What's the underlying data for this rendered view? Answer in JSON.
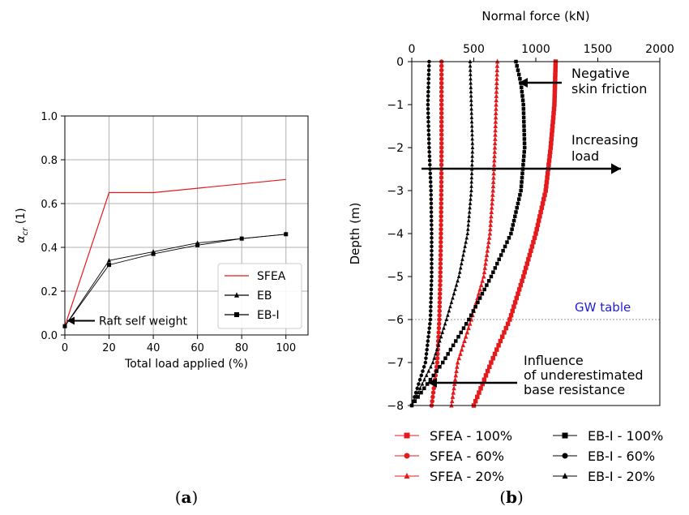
{
  "colors": {
    "red": "#e41a1c",
    "black": "#000000",
    "grid": "#b0b0b0",
    "blue": "#1f1fcf"
  },
  "chart_data": [
    {
      "type": "line",
      "panel_label": "(a)",
      "panel_letter": "a",
      "xlabel": "Total load applied (%)",
      "ylabel": "α",
      "ylabel_sub": "cr",
      "ylabel_unit": "(1)",
      "xlim": [
        0,
        110
      ],
      "ylim": [
        0,
        1.0
      ],
      "x_ticks": [
        "0",
        "20",
        "40",
        "60",
        "80",
        "100"
      ],
      "y_ticks": [
        "0.0",
        "0.2",
        "0.4",
        "0.6",
        "0.8",
        "1.0"
      ],
      "grid": true,
      "legend_position": "lower-right",
      "series": [
        {
          "name": "SFEA",
          "color": "#e41a1c",
          "marker": "none",
          "x": [
            0,
            20,
            40,
            100
          ],
          "y": [
            0.04,
            0.65,
            0.65,
            0.71
          ]
        },
        {
          "name": "EB",
          "color": "#000000",
          "marker": "triangle",
          "x": [
            0,
            20,
            40,
            60,
            80,
            100
          ],
          "y": [
            0.04,
            0.34,
            0.38,
            0.42,
            0.44,
            0.46
          ]
        },
        {
          "name": "EB-I",
          "color": "#000000",
          "marker": "square",
          "x": [
            0,
            20,
            40,
            60,
            80,
            100
          ],
          "y": [
            0.04,
            0.32,
            0.37,
            0.41,
            0.44,
            0.46
          ]
        }
      ],
      "annotations": [
        {
          "text": "Raft self weight",
          "x": 0,
          "y": 0.05
        }
      ]
    },
    {
      "type": "line",
      "panel_label": "(b)",
      "panel_letter": "b",
      "xlabel": "Normal force (kN)",
      "ylabel": "Depth (m)",
      "xlim": [
        0,
        2000
      ],
      "ylim": [
        -8,
        0
      ],
      "x_axis_position": "top",
      "x_ticks": [
        "0",
        "500",
        "1000",
        "1500",
        "2000"
      ],
      "y_ticks": [
        "0",
        "−1",
        "−2",
        "−3",
        "−4",
        "−5",
        "−6",
        "−7",
        "−8"
      ],
      "grid": false,
      "legend_position": "bottom",
      "gw_table": {
        "label": "GW table",
        "depth": -6
      },
      "series": [
        {
          "name": "SFEA - 100%",
          "color": "#e41a1c",
          "marker": "square",
          "depth": [
            0,
            -1,
            -2,
            -3,
            -4,
            -5,
            -6,
            -7,
            -8
          ],
          "force": [
            1160,
            1150,
            1120,
            1080,
            1000,
            900,
            790,
            640,
            500
          ]
        },
        {
          "name": "SFEA - 60%",
          "color": "#e41a1c",
          "marker": "circle",
          "depth": [
            0,
            -1,
            -2,
            -3,
            -4,
            -5,
            -6,
            -7,
            -8
          ],
          "force": [
            240,
            240,
            240,
            238,
            235,
            230,
            222,
            205,
            160
          ]
        },
        {
          "name": "SFEA - 20%",
          "color": "#e41a1c",
          "marker": "triangle",
          "depth": [
            0,
            -1,
            -2,
            -3,
            -4,
            -5,
            -6,
            -7,
            -8
          ],
          "force": [
            690,
            680,
            670,
            655,
            630,
            580,
            480,
            370,
            320
          ]
        },
        {
          "name": "EB-I - 100%",
          "color": "#000000",
          "marker": "square",
          "depth": [
            0,
            -0.5,
            -1,
            -2,
            -3,
            -4,
            -5,
            -6,
            -7,
            -8
          ],
          "force": [
            840,
            880,
            900,
            910,
            880,
            800,
            640,
            460,
            250,
            0
          ]
        },
        {
          "name": "EB-I - 60%",
          "color": "#000000",
          "marker": "circle",
          "depth": [
            0,
            -1,
            -2,
            -3,
            -4,
            -5,
            -6,
            -7,
            -8
          ],
          "force": [
            140,
            130,
            140,
            155,
            160,
            160,
            150,
            110,
            0
          ]
        },
        {
          "name": "EB-I - 20%",
          "color": "#000000",
          "marker": "triangle",
          "depth": [
            0,
            -1,
            -2,
            -3,
            -4,
            -5,
            -6,
            -7,
            -8
          ],
          "force": [
            470,
            480,
            490,
            480,
            450,
            380,
            280,
            170,
            0
          ]
        }
      ],
      "annotations": [
        {
          "text_lines": [
            "Negative",
            "skin friction"
          ],
          "x": 880,
          "y": -0.7
        },
        {
          "text_lines": [
            "Increasing",
            "load"
          ],
          "x": 1200,
          "y": -2.5
        },
        {
          "text_lines": [
            "Influence",
            "of underestimated",
            "base resistance"
          ],
          "x": 900,
          "y": -7.3
        }
      ]
    }
  ]
}
